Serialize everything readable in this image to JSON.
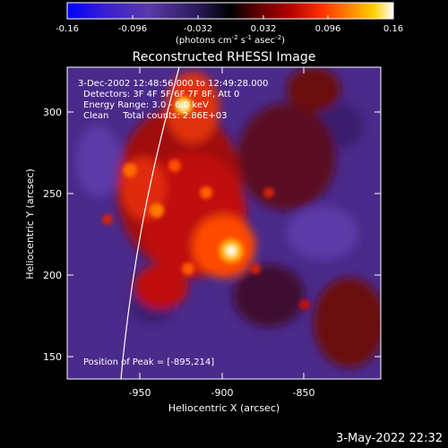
{
  "colorbar": {
    "tick_labels": [
      "-0.16",
      "-0.096",
      "-0.032",
      "0.032",
      "0.096",
      "0.16"
    ],
    "units_prefix": "(photons cm",
    "units_exp1": "-2",
    "units_mid": " s",
    "units_exp2": "-1",
    "units_tail": " asec",
    "units_exp3": "-2",
    "units_close": ")",
    "gradient_colors": [
      "#0000ff",
      "#3b1fd0",
      "#5a3aa8",
      "#2a1a5a",
      "#000000",
      "#5a0000",
      "#b00000",
      "#ff3000",
      "#ff8a00",
      "#ffd000",
      "#ffffff"
    ]
  },
  "title": "Reconstructed RHESSI Image",
  "info": {
    "time_range": "3-Dec-2002 12:48:56.000 to 12:49:28.000",
    "detectors": "Detectors: 3F 4F 5F 6F 7F 8F, Att 0",
    "energy": "Energy Range: 3.0 - 6.0 keV",
    "clean": "Clean     Total counts: 2.86E+03"
  },
  "peak_label": "Position of Peak = [-895,214]",
  "axes": {
    "xlabel": "Heliocentric X (arcsec)",
    "ylabel": "Heliocentric Y (arcsec)",
    "x_ticks": [
      "-950",
      "-900",
      "-850"
    ],
    "y_ticks": [
      "300",
      "250",
      "200",
      "150"
    ]
  },
  "timestamp": "3-May-2022 22:32"
}
